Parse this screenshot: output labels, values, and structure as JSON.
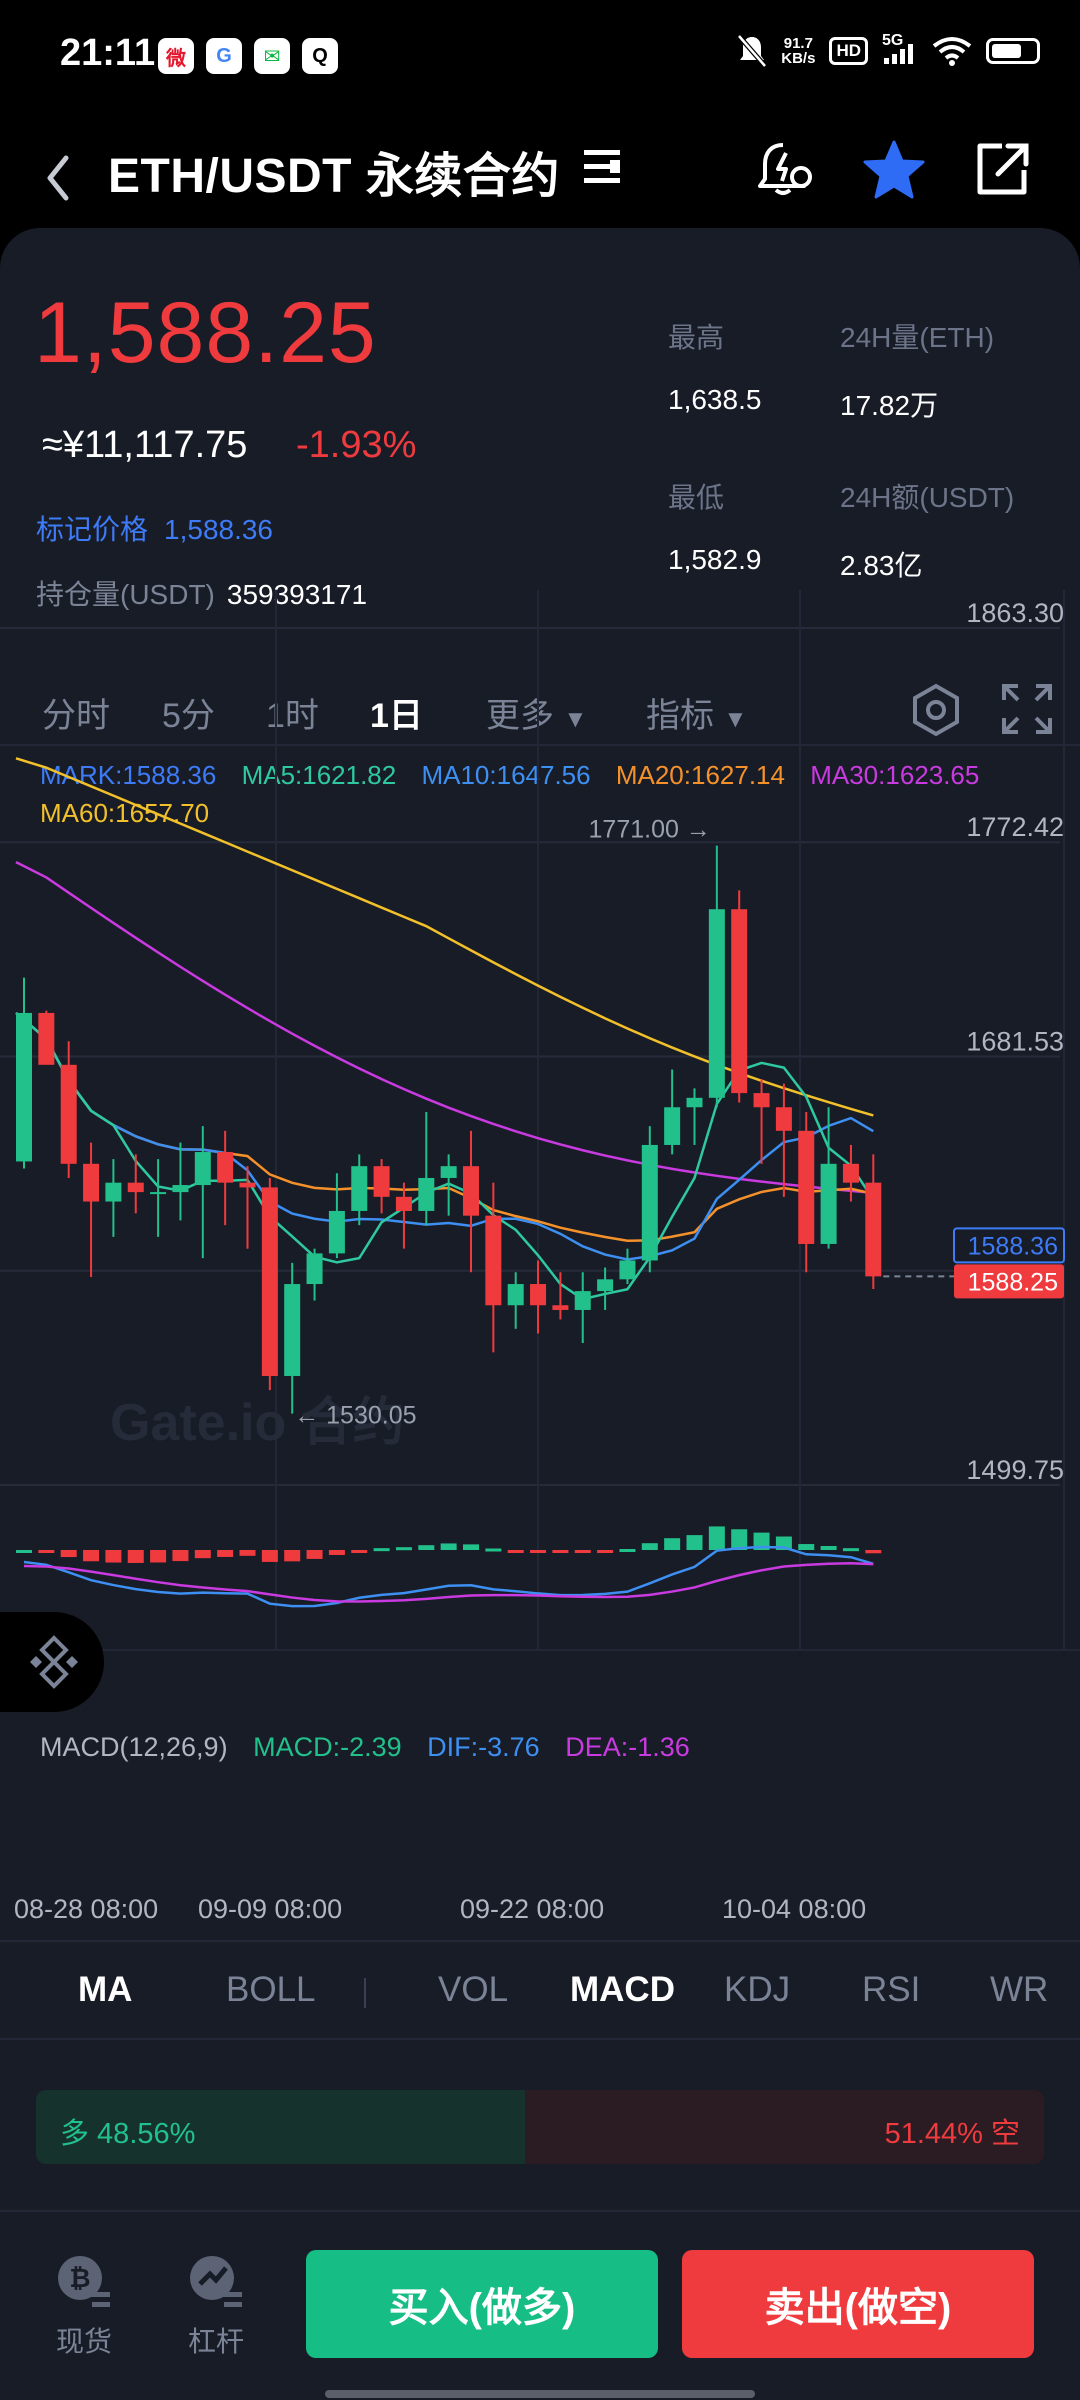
{
  "status_bar": {
    "time": "21:11",
    "net_speed_value": "91.7",
    "net_speed_unit": "KB/s",
    "hd": "HD",
    "signal": "5G",
    "battery_level": 0.7,
    "apps": [
      "weibo-icon",
      "google-icon",
      "wechat-icon",
      "qq-icon"
    ]
  },
  "header": {
    "title": "ETH/USDT 永续合约",
    "icons": [
      "back-icon",
      "menu-icon",
      "price-alert-icon",
      "favorite-star-icon",
      "share-icon"
    ]
  },
  "ticker": {
    "last_price": "1,588.25",
    "price_cny": "≈¥11,117.75",
    "change": "-1.93%",
    "mark_label": "标记价格",
    "mark_value": "1,588.36",
    "oi_label": "持仓量(USDT)",
    "oi_value": "359393171",
    "high_label": "最高",
    "high_value": "1,638.5",
    "vol_label": "24H量(ETH)",
    "vol_value": "17.82万",
    "low_label": "最低",
    "low_value": "1,582.9",
    "turnover_label": "24H额(USDT)",
    "turnover_value": "2.83亿"
  },
  "timeframes": [
    "分时",
    "5分",
    "1时",
    "1日",
    "更多",
    "指标"
  ],
  "active_timeframe": "1日",
  "ma_legend": {
    "mark": "MARK:1588.36",
    "ma5": "MA5:1621.82",
    "ma10": "MA10:1647.56",
    "ma20": "MA20:1627.14",
    "ma30": "MA30:1623.65",
    "ma60": "MA60:1657.70"
  },
  "macd_legend": {
    "name": "MACD(12,26,9)",
    "macd": "MACD:-2.39",
    "dif": "DIF:-3.76",
    "dea": "DEA:-1.36"
  },
  "chart_labels": {
    "high_marker": "1771.00 →",
    "low_marker": "← 1530.05",
    "mark_tag": "1588.36",
    "last_tag": "1588.25",
    "watermark": "Gate.io 合约"
  },
  "chart_data": {
    "type": "candlestick",
    "y_ticks": [
      "1863.30",
      "1772.42",
      "1681.53",
      "1499.75"
    ],
    "ylim": [
      1499.75,
      1863.3
    ],
    "x_ticks": [
      "08-28 08:00",
      "09-09 08:00",
      "09-22 08:00",
      "10-04 08:00"
    ],
    "candles": [
      {
        "o": 1637,
        "h": 1715,
        "l": 1634,
        "c": 1700
      },
      {
        "o": 1700,
        "h": 1701,
        "l": 1680,
        "c": 1678
      },
      {
        "o": 1678,
        "h": 1688,
        "l": 1630,
        "c": 1636
      },
      {
        "o": 1636,
        "h": 1645,
        "l": 1588,
        "c": 1620
      },
      {
        "o": 1620,
        "h": 1638,
        "l": 1605,
        "c": 1628
      },
      {
        "o": 1628,
        "h": 1640,
        "l": 1615,
        "c": 1624
      },
      {
        "o": 1624,
        "h": 1638,
        "l": 1605,
        "c": 1624
      },
      {
        "o": 1624,
        "h": 1645,
        "l": 1612,
        "c": 1627
      },
      {
        "o": 1627,
        "h": 1652,
        "l": 1596,
        "c": 1641
      },
      {
        "o": 1641,
        "h": 1650,
        "l": 1610,
        "c": 1628
      },
      {
        "o": 1628,
        "h": 1635,
        "l": 1600,
        "c": 1626
      },
      {
        "o": 1626,
        "h": 1630,
        "l": 1540,
        "c": 1546
      },
      {
        "o": 1546,
        "h": 1594,
        "l": 1530.05,
        "c": 1585
      },
      {
        "o": 1585,
        "h": 1600,
        "l": 1578,
        "c": 1598
      },
      {
        "o": 1598,
        "h": 1632,
        "l": 1596,
        "c": 1616
      },
      {
        "o": 1616,
        "h": 1640,
        "l": 1610,
        "c": 1635
      },
      {
        "o": 1635,
        "h": 1638,
        "l": 1615,
        "c": 1622
      },
      {
        "o": 1622,
        "h": 1628,
        "l": 1600,
        "c": 1616
      },
      {
        "o": 1616,
        "h": 1658,
        "l": 1610,
        "c": 1630
      },
      {
        "o": 1630,
        "h": 1640,
        "l": 1614,
        "c": 1635
      },
      {
        "o": 1635,
        "h": 1650,
        "l": 1590,
        "c": 1614
      },
      {
        "o": 1614,
        "h": 1628,
        "l": 1556,
        "c": 1576
      },
      {
        "o": 1576,
        "h": 1590,
        "l": 1566,
        "c": 1585
      },
      {
        "o": 1585,
        "h": 1595,
        "l": 1564,
        "c": 1576
      },
      {
        "o": 1576,
        "h": 1590,
        "l": 1570,
        "c": 1574
      },
      {
        "o": 1574,
        "h": 1590,
        "l": 1560,
        "c": 1582
      },
      {
        "o": 1582,
        "h": 1592,
        "l": 1574,
        "c": 1587
      },
      {
        "o": 1587,
        "h": 1600,
        "l": 1585,
        "c": 1595
      },
      {
        "o": 1595,
        "h": 1652,
        "l": 1590,
        "c": 1644
      },
      {
        "o": 1644,
        "h": 1676,
        "l": 1640,
        "c": 1660
      },
      {
        "o": 1660,
        "h": 1668,
        "l": 1644,
        "c": 1664
      },
      {
        "o": 1664,
        "h": 1771,
        "l": 1660,
        "c": 1744
      },
      {
        "o": 1744,
        "h": 1752,
        "l": 1662,
        "c": 1666
      },
      {
        "o": 1666,
        "h": 1672,
        "l": 1636,
        "c": 1660
      },
      {
        "o": 1660,
        "h": 1670,
        "l": 1622,
        "c": 1650
      },
      {
        "o": 1650,
        "h": 1658,
        "l": 1590,
        "c": 1602
      },
      {
        "o": 1602,
        "h": 1660,
        "l": 1600,
        "c": 1636
      },
      {
        "o": 1636,
        "h": 1644,
        "l": 1620,
        "c": 1628
      },
      {
        "o": 1628,
        "h": 1640,
        "l": 1582.9,
        "c": 1588.25
      }
    ]
  },
  "indicator_tabs": [
    "MA",
    "BOLL",
    "VOL",
    "MACD",
    "KDJ",
    "RSI",
    "WR"
  ],
  "active_main_indicator": "MA",
  "active_sub_indicator": "MACD",
  "long_short": {
    "long_text": "多 48.56%",
    "short_text": "51.44% 空",
    "long_ratio": 0.4856
  },
  "bottom": {
    "spot_label": "现货",
    "margin_label": "杠杆",
    "buy_label": "买入(做多)",
    "sell_label": "卖出(做空)"
  },
  "colors": {
    "up": "#22c08a",
    "down": "#ef3b3e",
    "mark": "#3d7bf7",
    "ma5": "#2ec9a0",
    "ma10": "#3d8ff2",
    "ma20": "#f5912a",
    "ma30": "#c93ae0",
    "ma60": "#f2c02a",
    "ma_other": "#b238d6"
  }
}
